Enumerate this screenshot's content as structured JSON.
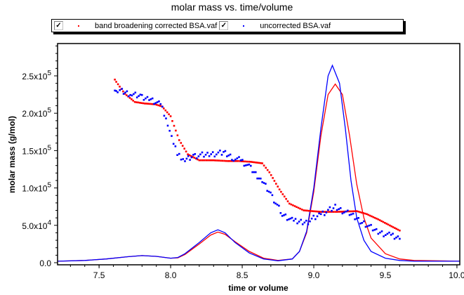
{
  "chart_data": {
    "type": "scatter",
    "title": "molar mass vs. time/volume",
    "xlabel": "time or volume",
    "ylabel": "molar mass (g/mol)",
    "xlim": [
      7.21,
      10.02
    ],
    "ylim": [
      0,
      293000
    ],
    "grid": false,
    "legend_position": "top",
    "x_ticks": [
      {
        "value": 7.5,
        "label": "7.5"
      },
      {
        "value": 8.0,
        "label": "8.0"
      },
      {
        "value": 8.5,
        "label": "8.5"
      },
      {
        "value": 9.0,
        "label": "9.0"
      },
      {
        "value": 9.5,
        "label": "9.5"
      },
      {
        "value": 10.0,
        "label": "10.0"
      }
    ],
    "y_ticks": [
      {
        "value": 0,
        "label": "0.0",
        "base": "0.0",
        "exp": ""
      },
      {
        "value": 50000,
        "label": "5.0x10^4",
        "base": "5.0x10",
        "exp": "4"
      },
      {
        "value": 100000,
        "label": "1.0x10^5",
        "base": "1.0x10",
        "exp": "5"
      },
      {
        "value": 150000,
        "label": "1.5x10^5",
        "base": "1.5x10",
        "exp": "5"
      },
      {
        "value": 200000,
        "label": "2.0x10^5",
        "base": "2.0x10",
        "exp": "5"
      },
      {
        "value": 250000,
        "label": "2.5x10^5",
        "base": "2.5x10",
        "exp": "5"
      }
    ],
    "series": [
      {
        "name": "band broadening corrected BSA.vaf",
        "color": "#ff0000",
        "checked": true,
        "molar_mass": {
          "x": [
            7.61,
            7.62,
            7.68,
            7.75,
            7.82,
            7.89,
            7.94,
            8.0,
            8.06,
            8.12,
            8.2,
            8.3,
            8.4,
            8.47,
            8.56,
            8.64,
            8.69,
            8.76,
            8.83,
            8.93,
            9.05,
            9.15,
            9.3,
            9.37,
            9.45,
            9.52,
            9.6
          ],
          "y": [
            245000,
            242000,
            226000,
            215000,
            213000,
            212000,
            209000,
            196000,
            164000,
            145000,
            137000,
            137000,
            136000,
            136000,
            135000,
            133000,
            121000,
            98000,
            79000,
            70000,
            68000,
            68000,
            69000,
            65000,
            58000,
            51000,
            43000
          ]
        },
        "trace": {
          "x": [
            7.21,
            7.4,
            7.55,
            7.7,
            7.8,
            7.9,
            8.0,
            8.05,
            8.1,
            8.2,
            8.28,
            8.33,
            8.38,
            8.45,
            8.55,
            8.65,
            8.75,
            8.85,
            8.9,
            8.95,
            9.0,
            9.05,
            9.1,
            9.15,
            9.2,
            9.25,
            9.3,
            9.35,
            9.4,
            9.5,
            9.6,
            9.7,
            10.02
          ],
          "y": [
            2000,
            3000,
            5000,
            8000,
            9500,
            8500,
            6000,
            6500,
            11000,
            25000,
            37000,
            41000,
            38000,
            28000,
            15000,
            6000,
            3000,
            5000,
            15000,
            40000,
            95000,
            170000,
            225000,
            239000,
            225000,
            170000,
            105000,
            60000,
            33000,
            12000,
            5000,
            3000,
            2000
          ]
        }
      },
      {
        "name": "uncorrected BSA.vaf",
        "color": "#0000ff",
        "checked": true,
        "molar_mass": {
          "x": [
            7.61,
            7.63,
            7.66,
            7.73,
            7.8,
            7.85,
            7.93,
            7.98,
            8.02,
            8.06,
            8.1,
            8.17,
            8.27,
            8.37,
            8.44,
            8.49,
            8.56,
            8.64,
            8.71,
            8.78,
            8.86,
            8.96,
            9.05,
            9.15,
            9.25,
            9.35,
            9.45,
            9.54,
            9.6
          ],
          "y": [
            234000,
            228000,
            229000,
            225000,
            222000,
            220000,
            211000,
            187000,
            159000,
            142000,
            137000,
            143000,
            145000,
            147000,
            140000,
            137000,
            126000,
            109000,
            88000,
            65000,
            55000,
            55000,
            65000,
            74000,
            65000,
            53000,
            41000,
            36000,
            32000
          ]
        },
        "trace": {
          "x": [
            7.21,
            7.4,
            7.55,
            7.7,
            7.8,
            7.9,
            8.0,
            8.05,
            8.1,
            8.2,
            8.28,
            8.33,
            8.38,
            8.45,
            8.55,
            8.65,
            8.75,
            8.85,
            8.9,
            8.95,
            9.0,
            9.05,
            9.1,
            9.13,
            9.18,
            9.22,
            9.26,
            9.3,
            9.35,
            9.4,
            9.5,
            9.6,
            9.7,
            10.02
          ],
          "y": [
            2000,
            3000,
            5000,
            8000,
            9500,
            8500,
            6000,
            7000,
            12000,
            27000,
            40000,
            44000,
            40000,
            27000,
            13000,
            5000,
            2500,
            5000,
            15000,
            42000,
            100000,
            180000,
            250000,
            264000,
            240000,
            180000,
            110000,
            60000,
            30000,
            15000,
            6000,
            3000,
            2000,
            2000
          ]
        }
      }
    ]
  }
}
